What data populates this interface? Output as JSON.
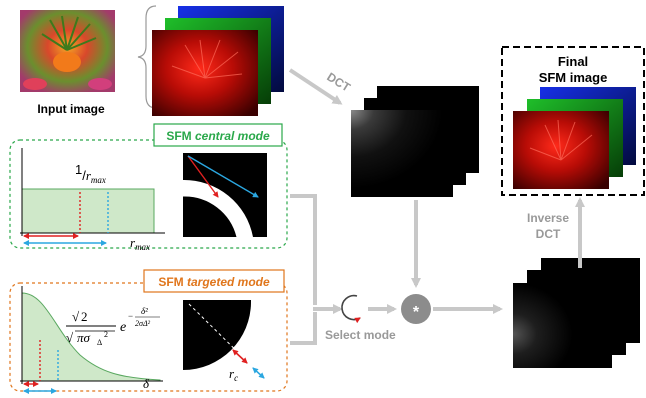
{
  "labels": {
    "input_image": "Input image",
    "dct": "DCT",
    "final_line1": "Final",
    "final_line2": "SFM image",
    "inverse_line1": "Inverse",
    "inverse_line2": "DCT",
    "select_mode": "Select mode",
    "star": "*"
  },
  "central_mode": {
    "title_prefix": "SFM ",
    "title_emph": "central mode",
    "one": "1",
    "r": "r",
    "max": "max",
    "color": "#2aa84a"
  },
  "targeted_mode": {
    "title_prefix": "SFM ",
    "title_emph": "targeted mode",
    "sqrt2": "2",
    "pi_sigma": "πσ",
    "delta_sub": "Δ",
    "e": "e",
    "exponent_num": "δ²",
    "exponent_den": "2σΔ²",
    "exponent_minus": "−",
    "delta": "δ",
    "rc_r": "r",
    "rc_c": "c",
    "color": "#e0761c"
  },
  "colors": {
    "arrow_gray": "#c8c8c8",
    "red_marker": "#e02020",
    "blue_marker": "#2ba7e0",
    "fill_green": "#cfe8c9"
  }
}
